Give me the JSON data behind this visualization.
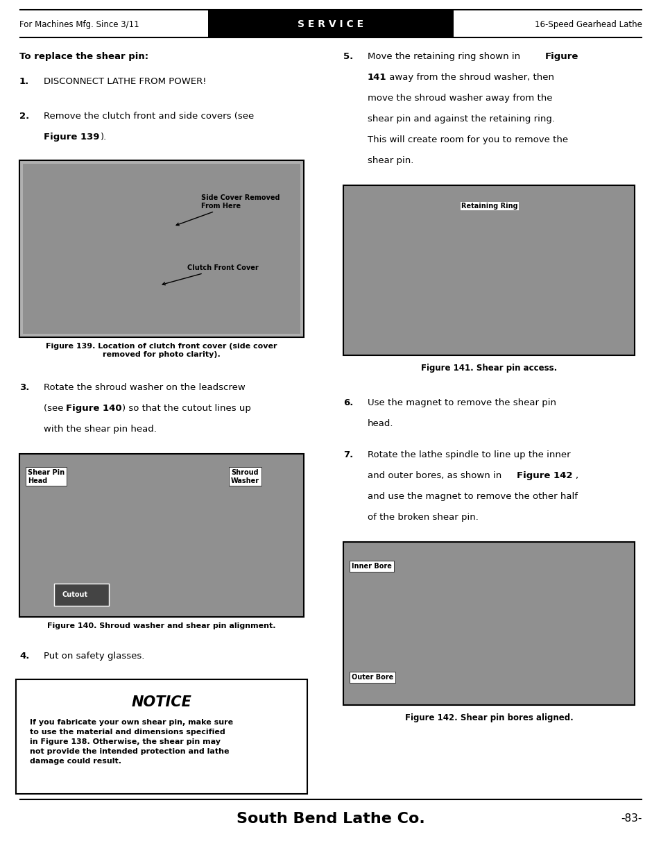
{
  "page_width": 9.54,
  "page_height": 12.35,
  "bg_color": "#ffffff",
  "header": {
    "left_text": "For Machines Mfg. Since 3/11",
    "center_text": "S E R V I C E",
    "right_text": "16-Speed Gearhead Lathe"
  },
  "footer": {
    "center_text": "South Bend Lathe Co.",
    "right_text": "-83-"
  },
  "left_column": {
    "heading": "To replace the shear pin:",
    "fig139_caption": "Figure 139. Location of clutch front cover (side cover\nremoved for photo clarity).",
    "fig140_caption": "Figure 140. Shroud washer and shear pin alignment.",
    "notice_title": "NOTICE",
    "notice_body": "If you fabricate your own shear pin, make sure\nto use the material and dimensions specified\nin Figure 138. Otherwise, the shear pin may\nnot provide the intended protection and lathe\ndamage could result."
  },
  "right_column": {
    "fig141_caption": "Figure 141. Shear pin access.",
    "fig142_caption": "Figure 142. Shear pin bores aligned."
  }
}
